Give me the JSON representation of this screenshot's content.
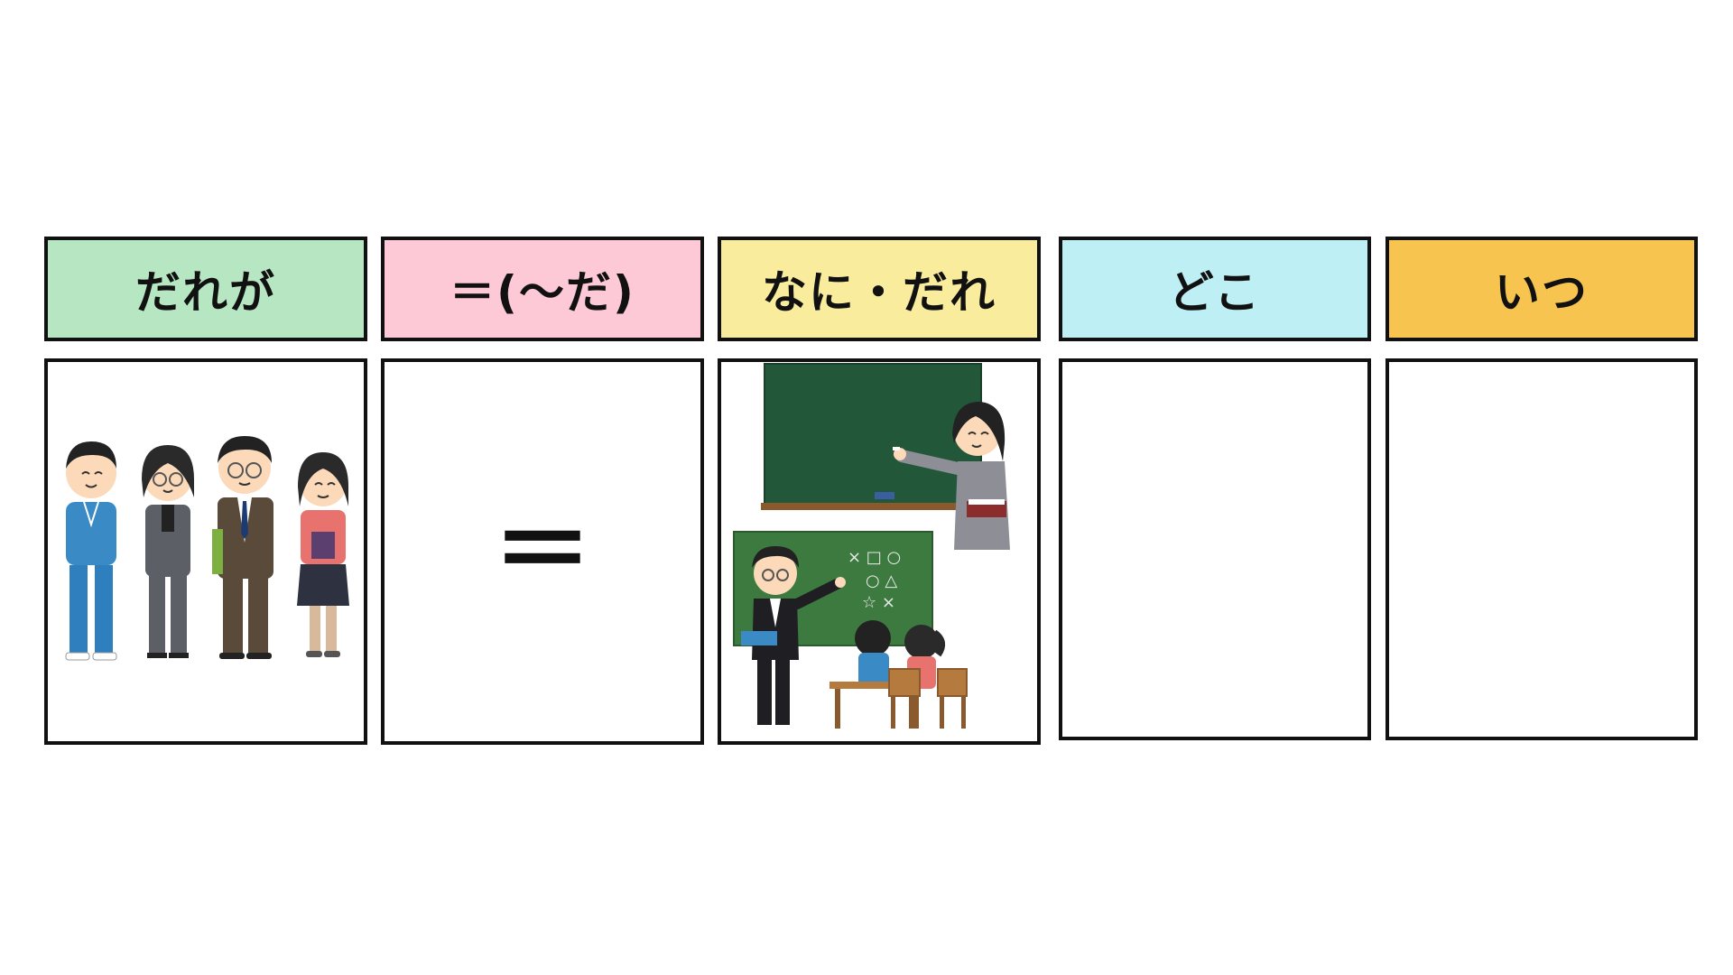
{
  "columns": [
    {
      "label": "だれが",
      "color": "#b6e6c2"
    },
    {
      "label": "＝(〜だ)",
      "color": "#fdc9d7"
    },
    {
      "label": "なに・だれ",
      "color": "#f9ec9c"
    },
    {
      "label": "どこ",
      "color": "#bdeff5"
    },
    {
      "label": "いつ",
      "color": "#f7c54f"
    }
  ],
  "equals_symbol": "＝",
  "illustrations": {
    "col1": "school-staff-group",
    "col3": "teachers-at-blackboard"
  }
}
